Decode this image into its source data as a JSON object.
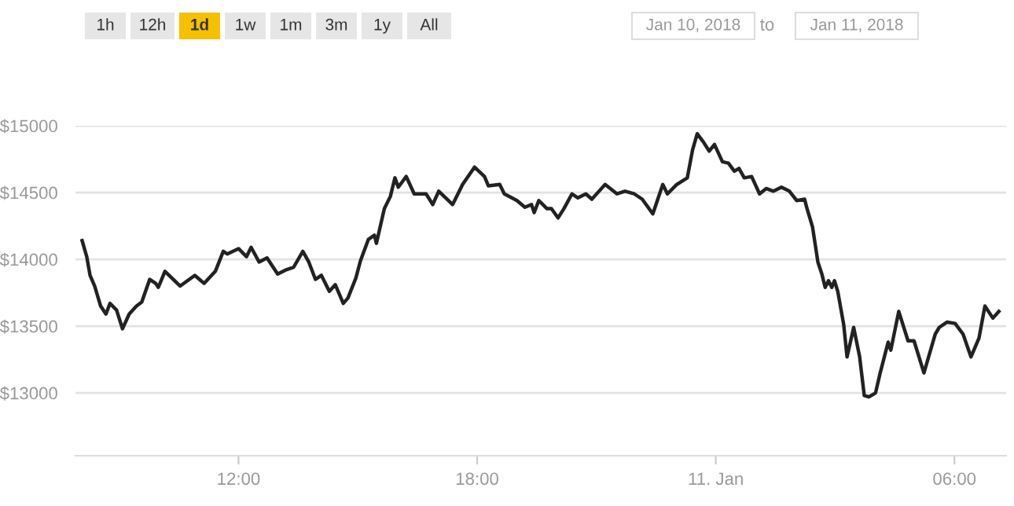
{
  "chart_data": {
    "type": "line",
    "color": "#222222",
    "grid": "y",
    "legend": false,
    "marker": "none",
    "line_style": "solid",
    "annotations": [
      "1h",
      "12h",
      "1d",
      "1w",
      "1m",
      "3m",
      "1y",
      "All",
      "Jan 10, 2018",
      "to",
      "Jan 11, 2018"
    ],
    "x": [
      "2018-01-10T08:04",
      "2018-01-10T08:11",
      "2018-01-10T08:16",
      "2018-01-10T08:23",
      "2018-01-10T08:32",
      "2018-01-10T08:40",
      "2018-01-10T08:46",
      "2018-01-10T08:56",
      "2018-01-10T09:05",
      "2018-01-10T09:15",
      "2018-01-10T09:26",
      "2018-01-10T09:34",
      "2018-01-10T09:46",
      "2018-01-10T09:55",
      "2018-01-10T09:59",
      "2018-01-10T10:09",
      "2018-01-10T10:32",
      "2018-01-10T10:54",
      "2018-01-10T11:08",
      "2018-01-10T11:25",
      "2018-01-10T11:37",
      "2018-01-10T11:43",
      "2018-01-10T12:00",
      "2018-01-10T12:12",
      "2018-01-10T12:19",
      "2018-01-10T12:31",
      "2018-01-10T12:43",
      "2018-01-10T12:59",
      "2018-01-10T13:11",
      "2018-01-10T13:23",
      "2018-01-10T13:37",
      "2018-01-10T13:46",
      "2018-01-10T13:56",
      "2018-01-10T14:05",
      "2018-01-10T14:17",
      "2018-01-10T14:26",
      "2018-01-10T14:38",
      "2018-01-10T14:45",
      "2018-01-10T14:57",
      "2018-01-10T15:04",
      "2018-01-10T15:16",
      "2018-01-10T15:25",
      "2018-01-10T15:28",
      "2018-01-10T15:40",
      "2018-01-10T15:49",
      "2018-01-10T15:56",
      "2018-01-10T16:01",
      "2018-01-10T16:13",
      "2018-01-10T16:25",
      "2018-01-10T16:43",
      "2018-01-10T16:53",
      "2018-01-10T17:02",
      "2018-01-10T17:23",
      "2018-01-10T17:38",
      "2018-01-10T17:56",
      "2018-01-10T18:11",
      "2018-01-10T18:17",
      "2018-01-10T18:34",
      "2018-01-10T18:41",
      "2018-01-10T19:00",
      "2018-01-10T19:12",
      "2018-01-10T19:22",
      "2018-01-10T19:26",
      "2018-01-10T19:33",
      "2018-01-10T19:45",
      "2018-01-10T19:52",
      "2018-01-10T20:02",
      "2018-01-10T20:11",
      "2018-01-10T20:23",
      "2018-01-10T20:32",
      "2018-01-10T20:44",
      "2018-01-10T20:53",
      "2018-01-10T21:13",
      "2018-01-10T21:31",
      "2018-01-10T21:43",
      "2018-01-10T21:57",
      "2018-01-10T22:09",
      "2018-01-10T22:25",
      "2018-01-10T22:40",
      "2018-01-10T22:47",
      "2018-01-10T23:01",
      "2018-01-10T23:17",
      "2018-01-10T23:25",
      "2018-01-10T23:32",
      "2018-01-10T23:41",
      "2018-01-10T23:50",
      "2018-01-10T23:58",
      "2018-01-11T00:10",
      "2018-01-11T00:19",
      "2018-01-11T00:28",
      "2018-01-11T00:35",
      "2018-01-11T00:43",
      "2018-01-11T00:54",
      "2018-01-11T01:06",
      "2018-01-11T01:16",
      "2018-01-11T01:27",
      "2018-01-11T01:39",
      "2018-01-11T01:51",
      "2018-01-11T02:02",
      "2018-01-11T02:14",
      "2018-01-11T02:17",
      "2018-01-11T02:26",
      "2018-01-11T02:34",
      "2018-01-11T02:40",
      "2018-01-11T02:45",
      "2018-01-11T02:50",
      "2018-01-11T02:55",
      "2018-01-11T02:59",
      "2018-01-11T03:04",
      "2018-01-11T03:13",
      "2018-01-11T03:18",
      "2018-01-11T03:28",
      "2018-01-11T03:37",
      "2018-01-11T03:44",
      "2018-01-11T03:51",
      "2018-01-11T04:01",
      "2018-01-11T04:08",
      "2018-01-11T04:20",
      "2018-01-11T04:24",
      "2018-01-11T04:36",
      "2018-01-11T04:50",
      "2018-01-11T04:59",
      "2018-01-11T05:14",
      "2018-01-11T05:31",
      "2018-01-11T05:37",
      "2018-01-11T05:49",
      "2018-01-11T06:01",
      "2018-01-11T06:13",
      "2018-01-11T06:25",
      "2018-01-11T06:37",
      "2018-01-11T06:46",
      "2018-01-11T06:58",
      "2018-01-11T07:07"
    ],
    "values": [
      14140,
      14020,
      13880,
      13800,
      13650,
      13590,
      13670,
      13620,
      13480,
      13590,
      13650,
      13680,
      13850,
      13820,
      13790,
      13910,
      13800,
      13880,
      13820,
      13910,
      14060,
      14040,
      14080,
      14020,
      14090,
      13980,
      14010,
      13890,
      13920,
      13940,
      14060,
      13980,
      13850,
      13880,
      13760,
      13810,
      13670,
      13710,
      13860,
      13990,
      14150,
      14180,
      14120,
      14380,
      14470,
      14610,
      14540,
      14620,
      14490,
      14490,
      14410,
      14510,
      14410,
      14560,
      14690,
      14620,
      14550,
      14560,
      14490,
      14440,
      14390,
      14410,
      14350,
      14440,
      14380,
      14380,
      14310,
      14380,
      14490,
      14460,
      14490,
      14450,
      14560,
      14490,
      14510,
      14490,
      14450,
      14340,
      14560,
      14490,
      14560,
      14610,
      14820,
      14940,
      14880,
      14810,
      14860,
      14730,
      14720,
      14660,
      14680,
      14610,
      14620,
      14490,
      14530,
      14510,
      14540,
      14510,
      14440,
      14450,
      14390,
      14240,
      13980,
      13890,
      13790,
      13840,
      13790,
      13840,
      13760,
      13510,
      13270,
      13490,
      13270,
      12980,
      12970,
      13000,
      13150,
      13380,
      13320,
      13610,
      13390,
      13390,
      13150,
      13440,
      13490,
      13530,
      13520,
      13440,
      13270,
      13410,
      13650,
      13560,
      13610
    ],
    "xlim": [
      "2018-01-10T07:54",
      "2018-01-11T07:18"
    ],
    "ylim": [
      12530,
      15000
    ],
    "xticks": [
      {
        "value": "2018-01-10T12:00",
        "label": "12:00"
      },
      {
        "value": "2018-01-10T18:00",
        "label": "18:00"
      },
      {
        "value": "2018-01-11T00:00",
        "label": "11. Jan"
      },
      {
        "value": "2018-01-11T06:00",
        "label": "06:00"
      }
    ],
    "yticks": [
      {
        "value": 13000,
        "label": "$13000"
      },
      {
        "value": 13500,
        "label": "$13500"
      },
      {
        "value": 14000,
        "label": "$14000"
      },
      {
        "value": 14500,
        "label": "$14500"
      },
      {
        "value": 15000,
        "label": "$15000"
      }
    ]
  }
}
